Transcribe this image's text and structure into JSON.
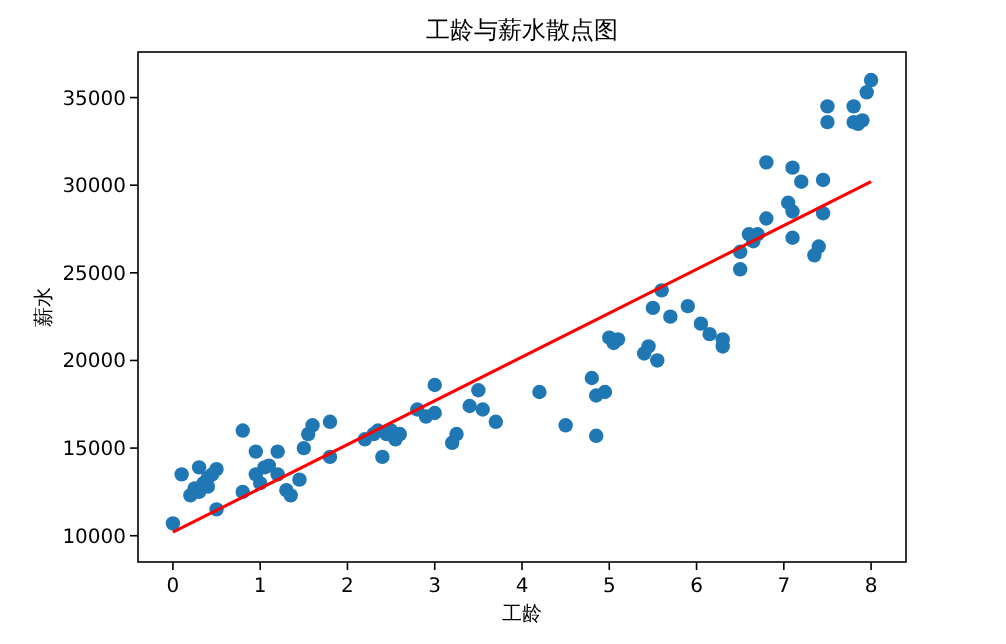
{
  "chart_data": {
    "type": "scatter",
    "title": "工龄与薪水散点图",
    "xlabel": "工龄",
    "ylabel": "薪水",
    "xlim": [
      -0.4,
      8.4
    ],
    "ylim": [
      8500,
      37600
    ],
    "xticks": [
      0,
      1,
      2,
      3,
      4,
      5,
      6,
      7,
      8
    ],
    "yticks": [
      10000,
      15000,
      20000,
      25000,
      30000,
      35000
    ],
    "series": [
      {
        "type": "scatter",
        "marker": "circle",
        "color": "#1f77b4",
        "x": [
          0.0,
          0.1,
          0.2,
          0.25,
          0.3,
          0.3,
          0.35,
          0.4,
          0.4,
          0.45,
          0.5,
          0.5,
          0.8,
          0.8,
          0.95,
          0.95,
          1.0,
          1.05,
          1.1,
          1.2,
          1.2,
          1.3,
          1.35,
          1.45,
          1.5,
          1.55,
          1.6,
          1.8,
          1.8,
          2.2,
          2.3,
          2.35,
          2.4,
          2.45,
          2.5,
          2.55,
          2.6,
          2.8,
          2.9,
          3.0,
          3.0,
          3.2,
          3.25,
          3.4,
          3.5,
          3.55,
          3.7,
          4.2,
          4.5,
          4.85,
          4.8,
          4.85,
          4.95,
          5.0,
          5.05,
          5.1,
          5.4,
          5.45,
          5.5,
          5.55,
          5.6,
          5.7,
          5.9,
          6.05,
          6.15,
          6.3,
          6.3,
          6.5,
          6.5,
          6.6,
          6.65,
          6.7,
          6.8,
          6.8,
          7.05,
          7.1,
          7.2,
          7.1,
          7.1,
          7.35,
          7.4,
          7.45,
          7.45,
          7.5,
          7.5,
          7.8,
          7.8,
          7.9,
          7.95,
          8.0,
          7.85
        ],
        "values": [
          10700,
          13500,
          12300,
          12700,
          13900,
          12500,
          13000,
          13300,
          12800,
          13500,
          11500,
          13800,
          16000,
          12500,
          14800,
          13500,
          13000,
          13900,
          14000,
          14800,
          13500,
          12600,
          12300,
          13200,
          15000,
          15800,
          16300,
          16500,
          14500,
          15500,
          15800,
          16000,
          14500,
          15800,
          16000,
          15500,
          15800,
          17200,
          16800,
          18600,
          17000,
          15300,
          15800,
          17400,
          18300,
          17200,
          16500,
          18200,
          16300,
          15700,
          19000,
          18000,
          18200,
          21300,
          21000,
          21200,
          20400,
          20800,
          23000,
          20000,
          24000,
          22500,
          23100,
          22100,
          21500,
          21200,
          20800,
          25200,
          26200,
          27200,
          26800,
          27200,
          28100,
          31300,
          29000,
          31000,
          30200,
          28500,
          27000,
          26000,
          26500,
          28400,
          30300,
          34500,
          33600,
          34500,
          33600,
          33700,
          35300,
          36000,
          33500
        ]
      },
      {
        "type": "line",
        "marker": "none",
        "color": "#ff0000",
        "x": [
          0,
          8
        ],
        "values": [
          10200,
          30200
        ]
      }
    ]
  }
}
